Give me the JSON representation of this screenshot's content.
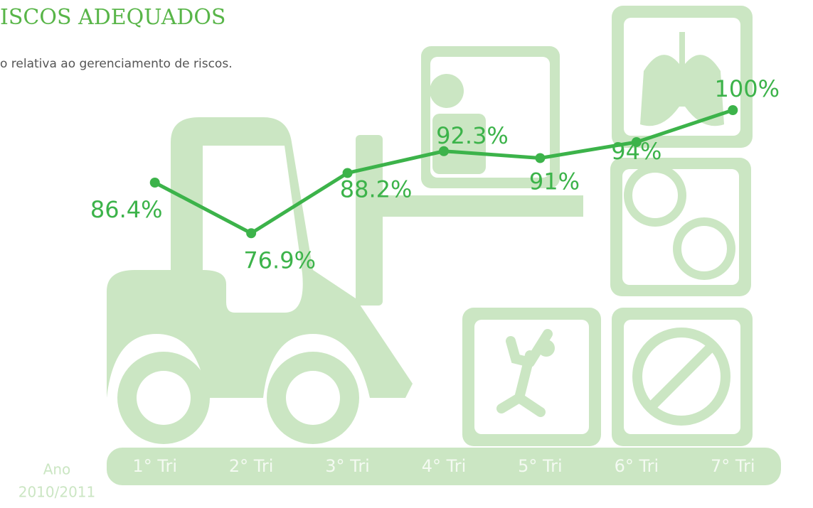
{
  "chart_data": {
    "type": "line",
    "title": "ISCOS ADEQUADOS",
    "subtitle": "o relativa ao gerenciamento de riscos.",
    "x_label": [
      "Ano",
      "2010/2011"
    ],
    "categories": [
      "1° Tri",
      "2° Tri",
      "3° Tri",
      "4° Tri",
      "5° Tri",
      "6° Tri",
      "7° Tri"
    ],
    "series": [
      {
        "name": "Riscos adequados",
        "color": "#3cb34a",
        "values": [
          86.4,
          76.9,
          88.2,
          92.3,
          91,
          94,
          100
        ],
        "value_labels": [
          "86.4%",
          "76.9%",
          "88.2%",
          "92.3%",
          "91%",
          "94%",
          "100%"
        ]
      }
    ],
    "ylim": [
      70,
      100
    ]
  }
}
